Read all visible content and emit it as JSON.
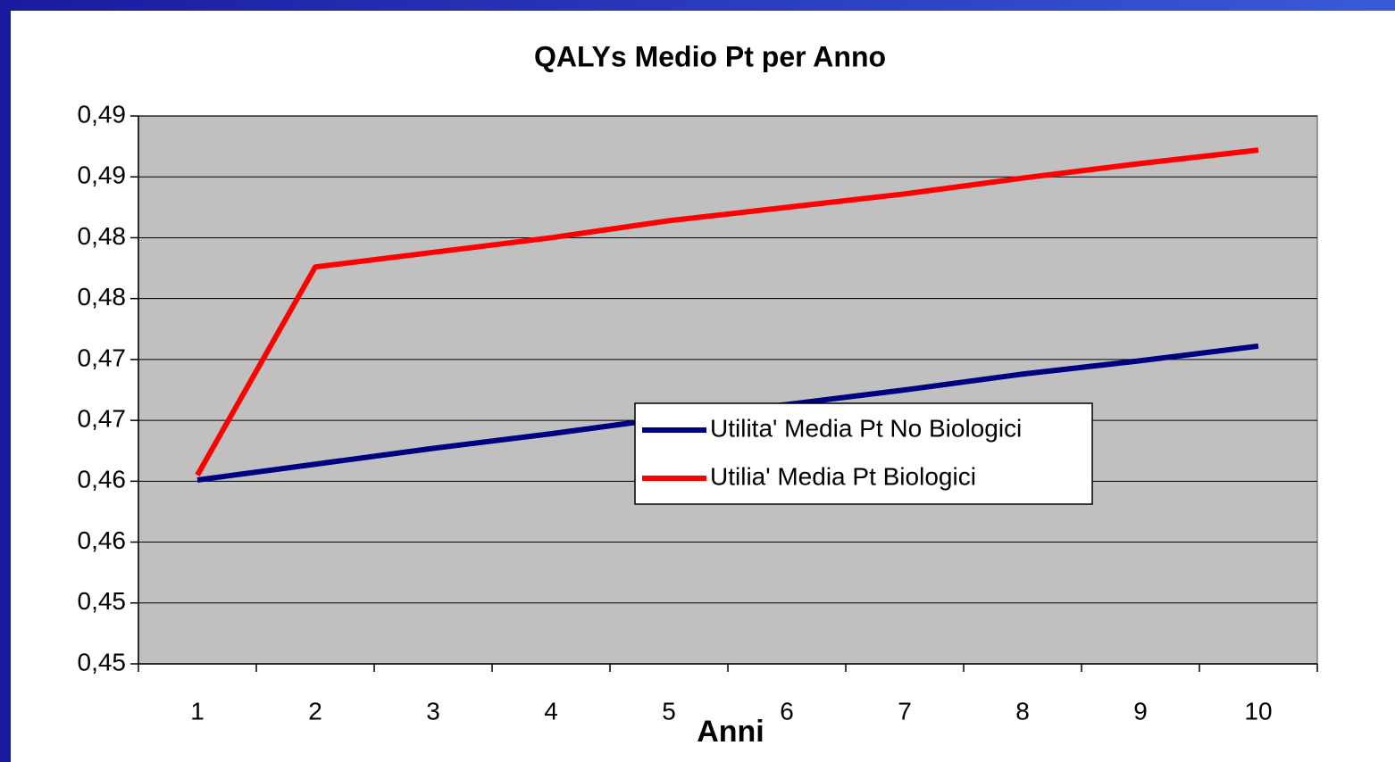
{
  "chart_data": {
    "type": "line",
    "title": "QALYs Medio Pt per Anno",
    "x_label": "Anni",
    "categories": [
      "1",
      "2",
      "3",
      "4",
      "5",
      "6",
      "7",
      "8",
      "9",
      "10"
    ],
    "series": [
      {
        "name": "Utilita' Media Pt No Biologici",
        "color": "#000080",
        "values": [
          0.4601,
          0.4614,
          0.4627,
          0.4639,
          0.4652,
          0.4663,
          0.4675,
          0.4688,
          0.4699,
          0.4711
        ]
      },
      {
        "name": "Utilia' Media Pt Biologici",
        "color": "#ff0000",
        "values": [
          0.4605,
          0.4776,
          0.4788,
          0.48,
          0.4814,
          0.4825,
          0.4836,
          0.4849,
          0.4861,
          0.4872
        ]
      }
    ],
    "ylim": [
      0.445,
      0.49
    ],
    "yticks": [
      {
        "value": 0.445,
        "label": "0,45"
      },
      {
        "value": 0.45,
        "label": "0,45"
      },
      {
        "value": 0.455,
        "label": "0,46"
      },
      {
        "value": 0.46,
        "label": "0,46"
      },
      {
        "value": 0.465,
        "label": "0,47"
      },
      {
        "value": 0.47,
        "label": "0,47"
      },
      {
        "value": 0.475,
        "label": "0,48"
      },
      {
        "value": 0.48,
        "label": "0,48"
      },
      {
        "value": 0.485,
        "label": "0,49"
      },
      {
        "value": 0.49,
        "label": "0,49"
      }
    ],
    "grid": true,
    "plot_background": "#c0c0c0",
    "legend": "center"
  }
}
